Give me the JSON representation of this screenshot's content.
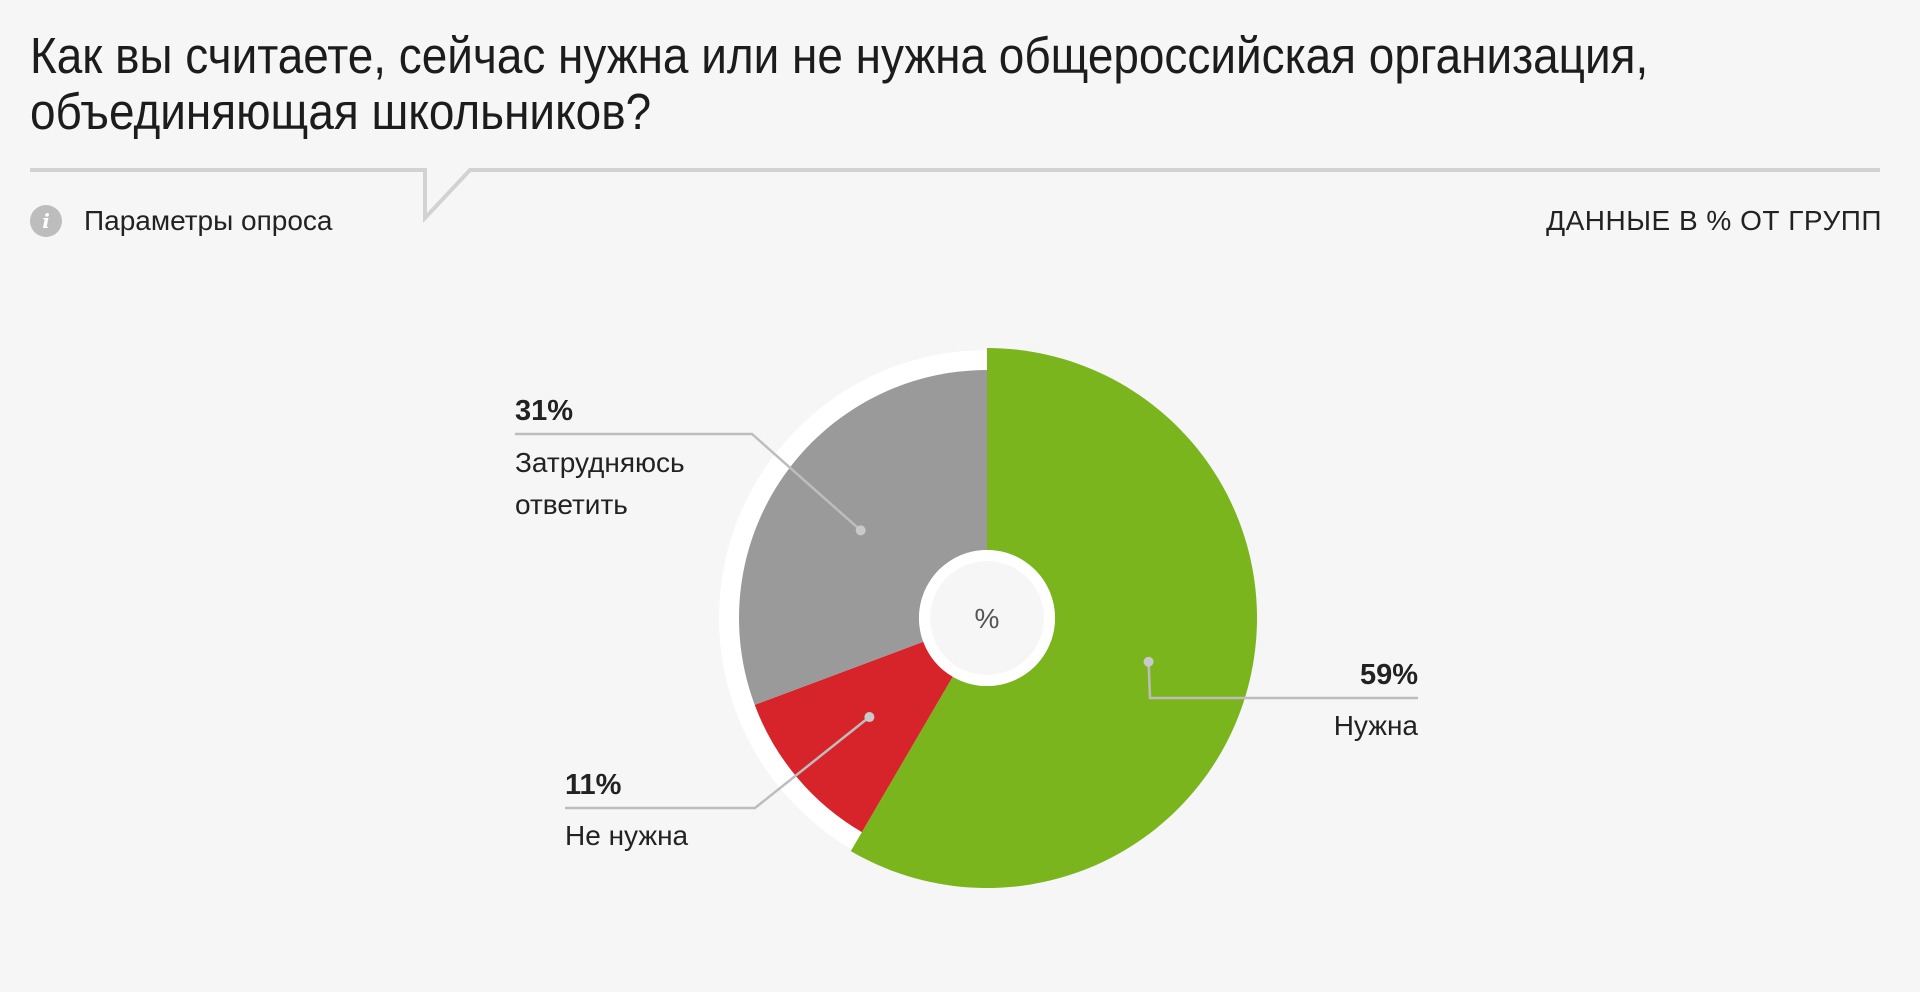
{
  "header": {
    "title": "Как вы считаете, сейчас нужна или не нужна общероссийская организация, объединяющая школьников?",
    "survey_params_label": "Параметры опроса",
    "data_note": "ДАННЫЕ В % ОТ ГРУПП",
    "info_icon": "info-icon"
  },
  "colors": {
    "background": "#f6f6f6",
    "needed": "#7ab51d",
    "not_needed": "#d7232a",
    "hard_to_say": "#9a9a9a",
    "divider": "#cfcfcf"
  },
  "chart_data": {
    "type": "pie",
    "center_label": "%",
    "slices": [
      {
        "label": "Нужна",
        "value": 59,
        "display": "59%",
        "color": "#7ab51d",
        "label_side": "right"
      },
      {
        "label": "Не нужна",
        "value": 11,
        "display": "11%",
        "color": "#d7232a",
        "label_side": "left"
      },
      {
        "label": "Затрудняюсь ответить",
        "display_lines": [
          "Затрудняюсь",
          "ответить"
        ],
        "value": 31,
        "display": "31%",
        "color": "#9a9a9a",
        "label_side": "left"
      }
    ]
  }
}
